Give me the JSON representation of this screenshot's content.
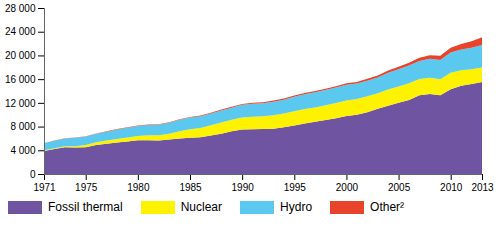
{
  "chart_data": {
    "type": "area",
    "stacked": true,
    "x": [
      1971,
      1972,
      1973,
      1974,
      1975,
      1976,
      1977,
      1978,
      1979,
      1980,
      1981,
      1982,
      1983,
      1984,
      1985,
      1986,
      1987,
      1988,
      1989,
      1990,
      1991,
      1992,
      1993,
      1994,
      1995,
      1996,
      1997,
      1998,
      1999,
      2000,
      2001,
      2002,
      2003,
      2004,
      2005,
      2006,
      2007,
      2008,
      2009,
      2010,
      2011,
      2012,
      2013
    ],
    "xlim": [
      1971,
      2013
    ],
    "xticks": [
      1971,
      1975,
      1980,
      1985,
      1990,
      1995,
      2000,
      2005,
      2010,
      2013
    ],
    "ylim": [
      0,
      28000
    ],
    "yticks": [
      0,
      {
        "value": 4000,
        "label": "4 000"
      },
      {
        "value": 8000,
        "label": "8 000"
      },
      {
        "value": 12000,
        "label": "12 000"
      },
      {
        "value": 16000,
        "label": "16 000"
      },
      {
        "value": 20000,
        "label": "20 000"
      },
      {
        "value": 24000,
        "label": "24 000"
      },
      {
        "value": 28000,
        "label": "28 000"
      }
    ],
    "grid": false,
    "legend": "bottom",
    "series": [
      {
        "name": "Fossil thermal",
        "color": "#6f55a1",
        "values": [
          3900,
          4200,
          4500,
          4450,
          4500,
          4900,
          5100,
          5300,
          5500,
          5700,
          5700,
          5650,
          5800,
          6000,
          6100,
          6200,
          6500,
          6800,
          7200,
          7500,
          7550,
          7600,
          7650,
          7900,
          8200,
          8500,
          8800,
          9100,
          9400,
          9800,
          10000,
          10400,
          11000,
          11500,
          12000,
          12500,
          13300,
          13500,
          13300,
          14300,
          14900,
          15200,
          15500
        ]
      },
      {
        "name": "Nuclear",
        "color": "#fff200",
        "values": [
          110,
          150,
          200,
          250,
          380,
          440,
          530,
          600,
          640,
          700,
          820,
          880,
          1010,
          1230,
          1450,
          1560,
          1720,
          1880,
          1930,
          2010,
          2100,
          2130,
          2240,
          2290,
          2370,
          2450,
          2420,
          2480,
          2570,
          2590,
          2650,
          2700,
          2640,
          2770,
          2770,
          2800,
          2720,
          2730,
          2700,
          2760,
          2580,
          2460,
          2480
        ]
      },
      {
        "name": "Hydro",
        "color": "#5bc8ef",
        "values": [
          1200,
          1250,
          1300,
          1400,
          1450,
          1450,
          1500,
          1600,
          1650,
          1700,
          1730,
          1770,
          1830,
          1900,
          1960,
          1980,
          2000,
          2050,
          2050,
          2150,
          2200,
          2200,
          2300,
          2330,
          2450,
          2500,
          2550,
          2580,
          2600,
          2650,
          2600,
          2650,
          2650,
          2800,
          2900,
          3000,
          3050,
          3200,
          3250,
          3450,
          3500,
          3650,
          3800
        ]
      },
      {
        "name": "Other²",
        "color": "#e8442c",
        "values": [
          40,
          40,
          45,
          50,
          55,
          60,
          65,
          70,
          75,
          80,
          85,
          90,
          95,
          100,
          110,
          120,
          130,
          140,
          150,
          160,
          170,
          180,
          190,
          200,
          210,
          220,
          230,
          240,
          250,
          260,
          280,
          310,
          340,
          380,
          420,
          470,
          540,
          610,
          680,
          800,
          950,
          1100,
          1300
        ]
      }
    ]
  }
}
